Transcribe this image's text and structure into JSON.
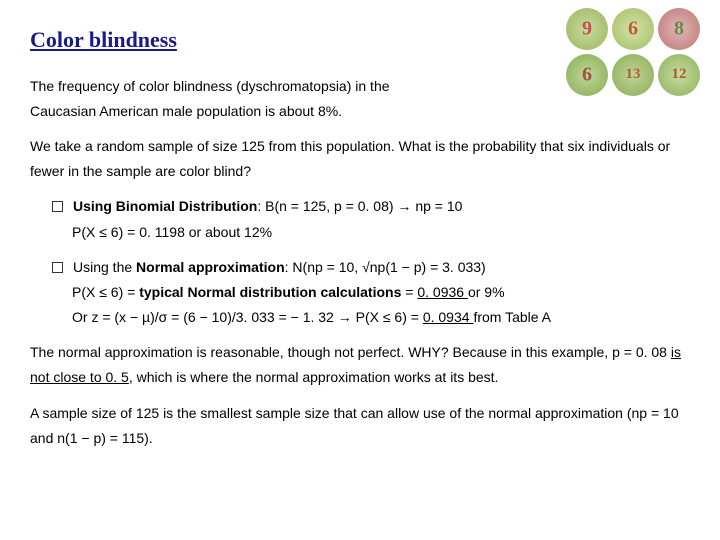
{
  "title": "Color blindness",
  "intro1_a": "The frequency of color blindness (dyschromatopsia) in the",
  "intro1_b": "Caucasian American male population is about 8%.",
  "intro2": "We take a random sample of size 125 from this population. What is the probability that six individuals or fewer in the sample are color blind?",
  "bullet1": {
    "lead_bold": "Using Binomial Distribution",
    "lead_rest": ": B(n = 125, p = 0. 08) → np = 10",
    "line2": "P(X ≤ 6) = 0. 1198 or about 12%"
  },
  "bullet2": {
    "lead_pre": "Using the ",
    "lead_bold": "Normal approximation",
    "lead_rest": ": N(np = 10, √np(1 − p) = 3. 033)",
    "line2_a": "P(X ≤ 6) = ",
    "line2_b_bold": "typical Normal distribution calculations",
    "line2_c": " = ",
    "line2_d_u": "0. 0936 ",
    "line2_e": "or 9%",
    "line3_a": "Or z = (x − µ)/σ = (6 − 10)/3. 033 = − 1. 32 → P(X ≤ 6) = ",
    "line3_b_u": "0. 0934 ",
    "line3_c": "from Table A"
  },
  "conc1_a": "The normal approximation is reasonable, though not perfect. WHY?  Because in this example, p = 0. 08 ",
  "conc1_b_u": "is not close to 0. 5",
  "conc1_c": ", which is where the normal approximation works at its best.",
  "conc2": "A sample size of 125 is the smallest sample size that can allow use of the normal approximation (np = 10 and n(1 − p) = 115).",
  "plates": [
    {
      "bg": "radial-gradient(circle,#c8dca0 0%,#a8c070 70%)",
      "num": "9",
      "num_color": "#c0504d"
    },
    {
      "bg": "radial-gradient(circle,#d5e3a6 0%,#b0c878 70%)",
      "num": "6",
      "num_color": "#b85a3a"
    },
    {
      "bg": "radial-gradient(circle,#e0b8b8 0%,#c88888 70%)",
      "num": "8",
      "num_color": "#6a8a46"
    },
    {
      "bg": "radial-gradient(circle,#c0d898 0%,#98b868 70%)",
      "num": "6",
      "num_color": "#a05040"
    },
    {
      "bg": "radial-gradient(circle,#bed496 0%,#9ab868 70%)",
      "num": "13",
      "num_color": "#b06040"
    },
    {
      "bg": "radial-gradient(circle,#c6dc9e 0%,#a0bc70 70%)",
      "num": "12",
      "num_color": "#a85838"
    }
  ]
}
